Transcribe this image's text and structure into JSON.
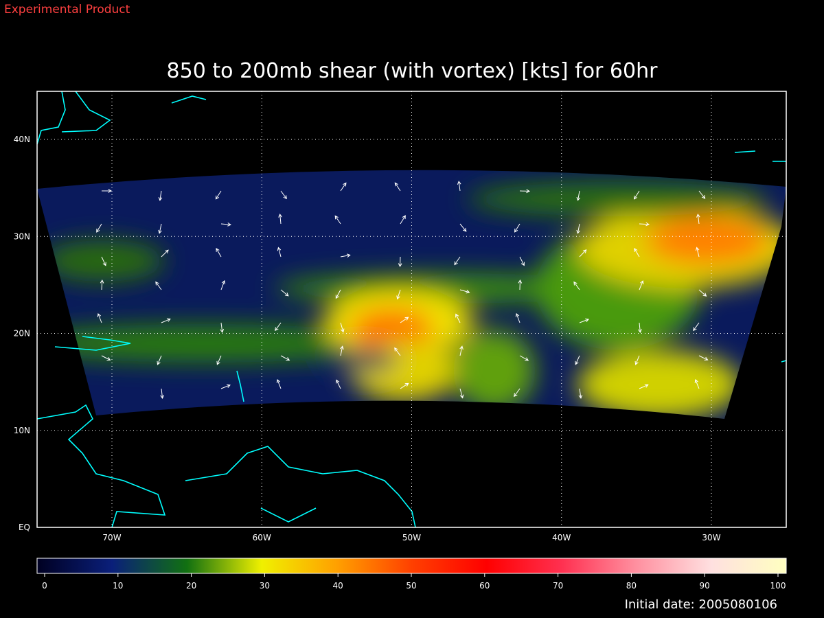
{
  "header": {
    "text": "Experimental Product"
  },
  "map": {
    "title": "850 to 200mb shear (with vortex) [kts] for 60hr",
    "lat_labels": [
      "40N",
      "30N",
      "20N",
      "10N",
      "EQ"
    ],
    "lon_labels": [
      "70W",
      "60W",
      "50W",
      "40W",
      "30W"
    ]
  },
  "colorbar": {
    "ticks": [
      0,
      10,
      20,
      30,
      40,
      50,
      60,
      70,
      80,
      90,
      100
    ]
  },
  "footer": {
    "initial_date": "Initial date: 2005080106"
  }
}
